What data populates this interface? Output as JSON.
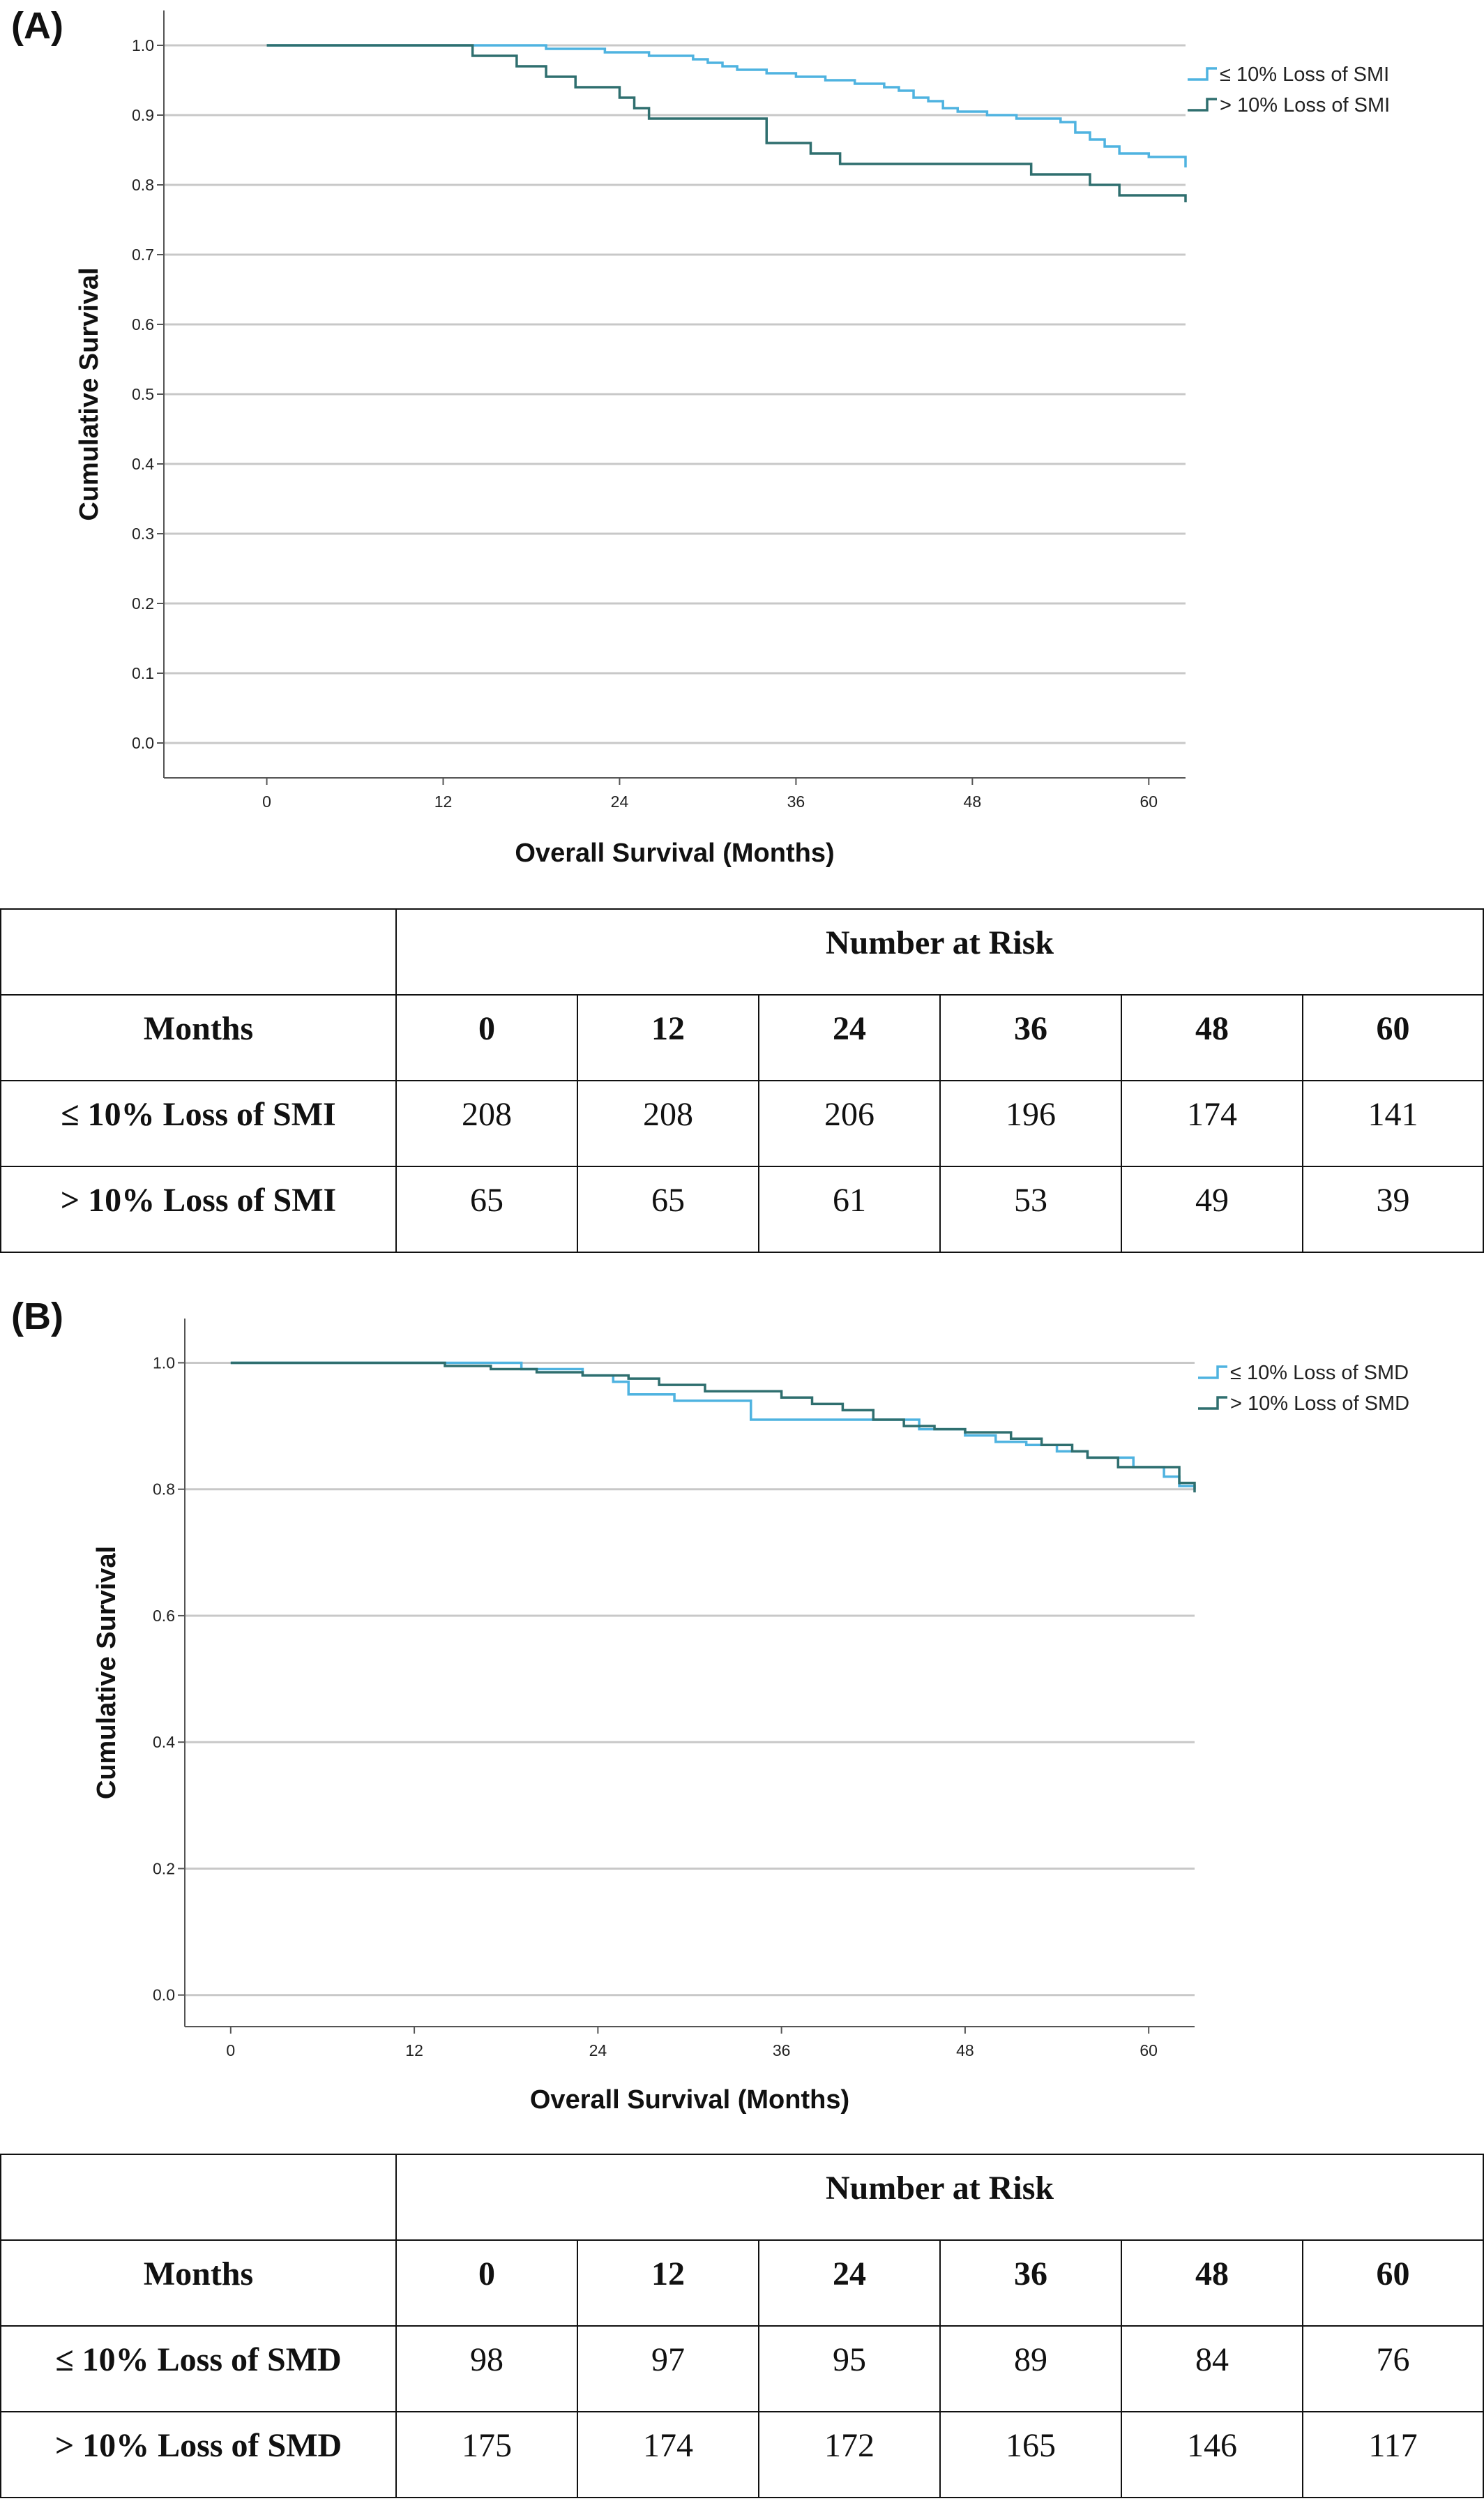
{
  "chart_data": [
    {
      "panel": "(A)",
      "type": "line",
      "step": true,
      "xlabel": "Overall Survival (Months)",
      "ylabel": "Cumulative Survival",
      "xlim": [
        -7,
        62.5
      ],
      "ylim": [
        -0.05,
        1.05
      ],
      "xticks": [
        0,
        12,
        24,
        36,
        48,
        60
      ],
      "yticks": [
        0.0,
        0.1,
        0.2,
        0.3,
        0.4,
        0.5,
        0.6,
        0.7,
        0.8,
        0.9,
        1.0
      ],
      "ytick_labels": [
        "0.0",
        "0.1",
        "0.2",
        "0.3",
        "0.4",
        "0.5",
        "0.6",
        "0.7",
        "0.8",
        "0.9",
        "1.0"
      ],
      "grid": "horizontal",
      "legend_position": "top-right",
      "series": [
        {
          "name": "≤ 10% Loss of SMI",
          "color": "#4fb3e0",
          "x": [
            0,
            19,
            23,
            26,
            29,
            30,
            31,
            32,
            34,
            36,
            38,
            40,
            42,
            43,
            44,
            45,
            46,
            47,
            49,
            51,
            54,
            55,
            56,
            57,
            58,
            60,
            62.5
          ],
          "y": [
            1.0,
            0.995,
            0.99,
            0.985,
            0.98,
            0.975,
            0.97,
            0.965,
            0.96,
            0.955,
            0.95,
            0.945,
            0.94,
            0.935,
            0.925,
            0.92,
            0.91,
            0.905,
            0.9,
            0.895,
            0.89,
            0.875,
            0.865,
            0.855,
            0.845,
            0.84,
            0.825
          ]
        },
        {
          "name": "> 10% Loss of SMI",
          "color": "#2f6f6f",
          "x": [
            0,
            14,
            17,
            19,
            21,
            24,
            25,
            26,
            34,
            37,
            39,
            52,
            56,
            58,
            62.5
          ],
          "y": [
            1.0,
            0.985,
            0.97,
            0.955,
            0.94,
            0.925,
            0.91,
            0.895,
            0.86,
            0.845,
            0.83,
            0.815,
            0.8,
            0.785,
            0.775
          ]
        }
      ]
    },
    {
      "panel": "(B)",
      "type": "line",
      "step": true,
      "xlabel": "Overall Survival (Months)",
      "ylabel": "Cumulative Survival",
      "xlim": [
        -3,
        63
      ],
      "ylim": [
        -0.05,
        1.07
      ],
      "xticks": [
        0,
        12,
        24,
        36,
        48,
        60
      ],
      "yticks": [
        0.0,
        0.2,
        0.4,
        0.6,
        0.8,
        1.0
      ],
      "ytick_labels": [
        "0.0",
        "0.2",
        "0.4",
        "0.6",
        "0.8",
        "1.0"
      ],
      "grid": "horizontal",
      "legend_position": "top-right",
      "series": [
        {
          "name": "≤ 10% Loss of SMD",
          "color": "#4fb3e0",
          "x": [
            0,
            19,
            23,
            25,
            26,
            29,
            34,
            45,
            48,
            50,
            52,
            54,
            56,
            59,
            61,
            62,
            63
          ],
          "y": [
            1.0,
            0.99,
            0.98,
            0.97,
            0.95,
            0.94,
            0.91,
            0.895,
            0.885,
            0.875,
            0.87,
            0.86,
            0.85,
            0.835,
            0.82,
            0.805,
            0.8
          ]
        },
        {
          "name": "> 10% Loss of SMD",
          "color": "#2f6f6f",
          "x": [
            0,
            14,
            17,
            20,
            23,
            26,
            28,
            31,
            36,
            38,
            40,
            42,
            44,
            46,
            48,
            51,
            53,
            55,
            56,
            58,
            62,
            63
          ],
          "y": [
            1.0,
            0.995,
            0.99,
            0.985,
            0.98,
            0.975,
            0.965,
            0.955,
            0.945,
            0.935,
            0.925,
            0.91,
            0.9,
            0.895,
            0.89,
            0.88,
            0.87,
            0.86,
            0.85,
            0.835,
            0.81,
            0.795
          ]
        }
      ]
    }
  ],
  "tables": [
    {
      "header": "Number at Risk",
      "months_label": "Months",
      "months": [
        "0",
        "12",
        "24",
        "36",
        "48",
        "60"
      ],
      "rows": [
        {
          "label": "≤ 10% Loss of SMI",
          "values": [
            "208",
            "208",
            "206",
            "196",
            "174",
            "141"
          ]
        },
        {
          "label": "> 10% Loss of SMI",
          "values": [
            "65",
            "65",
            "61",
            "53",
            "49",
            "39"
          ]
        }
      ]
    },
    {
      "header": "Number at Risk",
      "months_label": "Months",
      "months": [
        "0",
        "12",
        "24",
        "36",
        "48",
        "60"
      ],
      "rows": [
        {
          "label": "≤ 10% Loss of SMD",
          "values": [
            "98",
            "97",
            "95",
            "89",
            "84",
            "76"
          ]
        },
        {
          "label": "> 10% Loss of SMD",
          "values": [
            "175",
            "174",
            "172",
            "165",
            "146",
            "117"
          ]
        }
      ]
    }
  ]
}
